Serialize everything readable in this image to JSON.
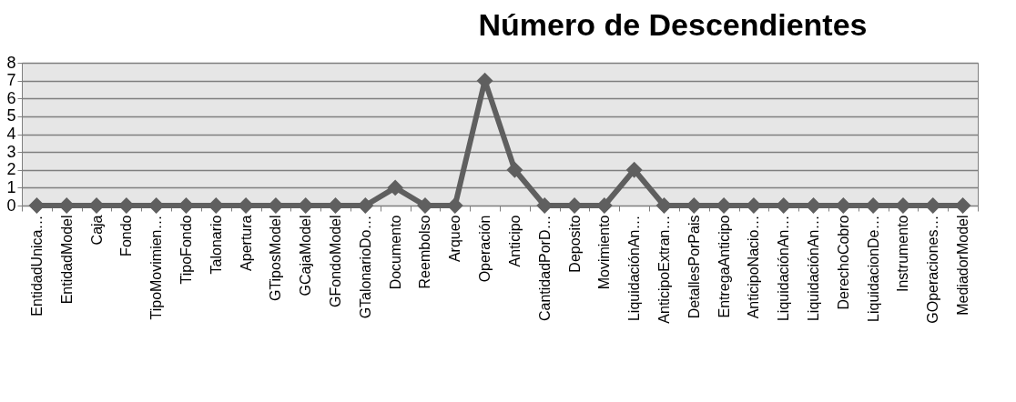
{
  "chart_data": {
    "type": "line",
    "title": "Número de Descendientes",
    "categories": [
      "EntidadUnica…",
      "EntidadModel",
      "Caja",
      "Fondo",
      "TipoMovimien…",
      "TipoFondo",
      "Talonario",
      "Apertura",
      "GTiposModel",
      "GCajaModel",
      "GFondoModel",
      "GTalonarioDo…",
      "Documento",
      "Reembolso",
      "Arqueo",
      "Operación",
      "Anticipo",
      "CantidadPorD…",
      "Deposito",
      "Movimiento",
      "LiquidaciónAn…",
      "AnticipoExtran…",
      "DetallesPorPais",
      "EntregaAnticipo",
      "AnticipoNacio…",
      "LiquidaciónAn…",
      "LiquidaciónAn…",
      "DerechoCobro",
      "LiquidacionDe…",
      "Instrumento",
      "GOperaciones…",
      "MediadorModel"
    ],
    "series": [
      {
        "color": "#5f5f5f",
        "values": [
          0,
          0,
          0,
          0,
          0,
          0,
          0,
          0,
          0,
          0,
          0,
          0,
          1,
          0,
          0,
          7,
          2,
          0,
          0,
          0,
          2,
          0,
          0,
          0,
          0,
          0,
          0,
          0,
          0,
          0,
          0,
          0
        ]
      }
    ],
    "ylim": [
      0,
      8
    ],
    "yticks": [
      0,
      1,
      2,
      3,
      4,
      5,
      6,
      7,
      8
    ],
    "grid": "y",
    "marker": "diamond",
    "line_style": "solid",
    "legend": false
  }
}
